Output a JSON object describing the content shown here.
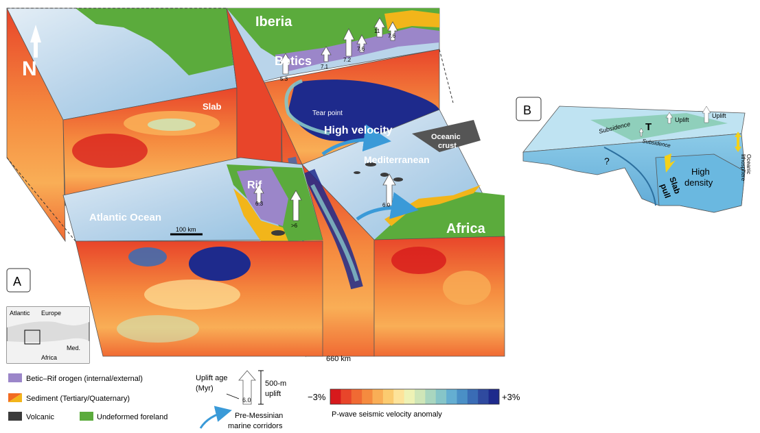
{
  "panels": {
    "a": "A",
    "b": "B"
  },
  "block": {
    "iberia": "Iberia",
    "betics": "Betics",
    "slab": "Slab",
    "tear_point": "Tear point",
    "high_velocity": "High velocity",
    "oceanic_crust_1": "Oceanic",
    "oceanic_crust_2": "crust",
    "mediterranean": "Mediterranean",
    "rif": "Rif",
    "atlantic_ocean": "Atlantic Ocean",
    "africa": "Africa",
    "north": "N",
    "scale_bar": "100 km",
    "depth": "660 km",
    "uplift_ages": [
      "11",
      "7.6",
      "7.2",
      "7.6",
      "7.1",
      "5.3",
      "6.3",
      ">6",
      "6.0"
    ]
  },
  "inset_map": {
    "atlantic": "Atlantic",
    "europe": "Europe",
    "africa": "Africa",
    "med": "Med."
  },
  "model_b": {
    "subsidence_1": "Subsidence",
    "subsidence_2": "Subsidence",
    "tear": "T",
    "uplift_1": "Uplift",
    "uplift_2": "Uplift",
    "question": "?",
    "slab_pull_1": "Slab",
    "slab_pull_2": "pull",
    "high_density_1": "High",
    "high_density_2": "density",
    "oceanic_lithosphere_1": "Oceanic",
    "oceanic_lithosphere_2": "lithosphere"
  },
  "legend": {
    "betic_rif": "Betic–Rif orogen (internal/external)",
    "sediment": "Sediment (Tertiary/Quaternary)",
    "volcanic": "Volcanic",
    "undeformed": "Undeformed foreland",
    "uplift_age_1": "Uplift age",
    "uplift_age_2": "(Myr)",
    "uplift_age_value": "6.0",
    "uplift_amount_1": "500-m",
    "uplift_amount_2": "uplift",
    "corridors_1": "Pre-Messinian",
    "corridors_2": "marine corridors",
    "scale_min": "−3%",
    "scale_max": "+3%",
    "scale_title": "P-wave seismic velocity anomaly"
  },
  "colors": {
    "orogen": "#9b86c9",
    "sediment": "#f2b51a",
    "volcanic": "#3b3b3b",
    "foreland": "#5bab3c",
    "ocean_light": "#cfe3f1",
    "ocean_mid": "#8fbfe0",
    "slow": "#e63a1f",
    "fast": "#1e2a8c",
    "accent_arrow": "#3a9ad8",
    "slab_pull_arrow": "#f3d11b"
  },
  "anomaly_scale": [
    "#d7191c",
    "#e8452a",
    "#f06a33",
    "#f58b3f",
    "#f9ae56",
    "#fbcb70",
    "#fde39a",
    "#eef2b5",
    "#cfe6b8",
    "#a9d6bf",
    "#86c5c8",
    "#64aed1",
    "#4a8fc6",
    "#3a6cb5",
    "#2f4a9f",
    "#1e2a8c"
  ]
}
